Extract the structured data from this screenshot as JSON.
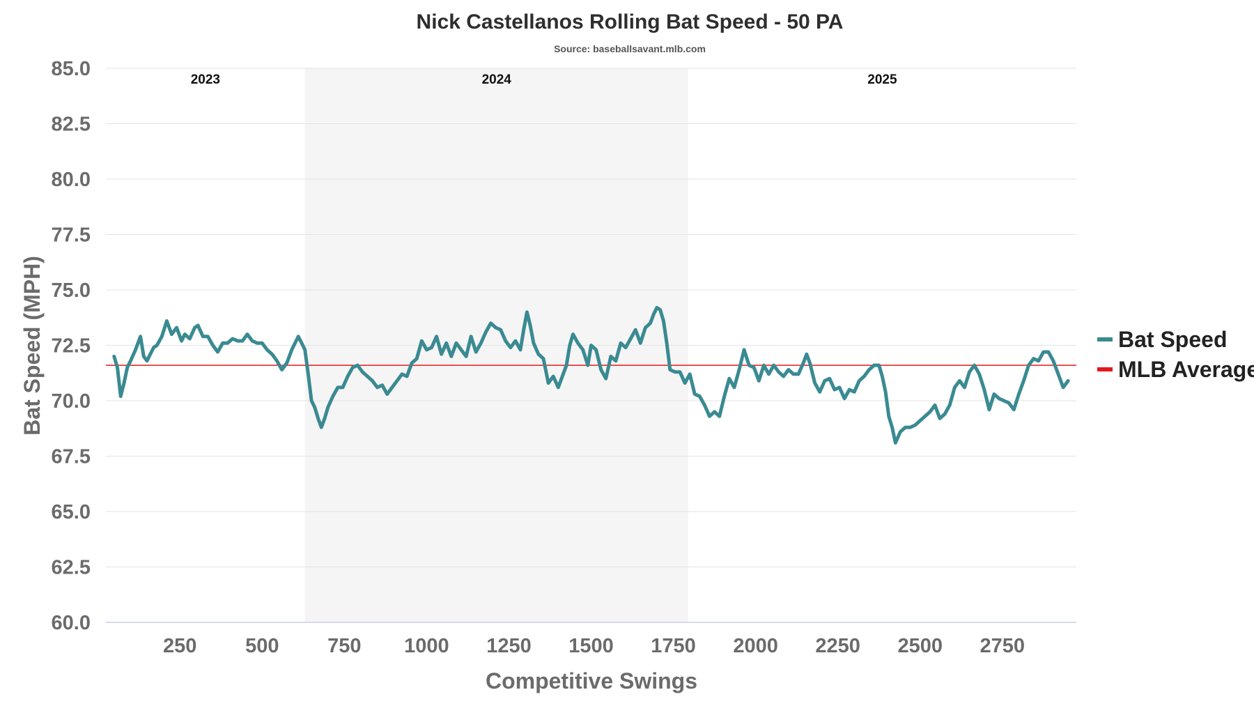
{
  "chart_data": {
    "type": "line",
    "title": "Nick Castellanos Rolling Bat Speed - 50 PA",
    "subtitle": "Source: baseballsavant.mlb.com",
    "xlabel": "Competitive Swings",
    "ylabel": "Bat Speed (MPH)",
    "xlim": [
      25,
      2975
    ],
    "ylim": [
      60.0,
      85.0
    ],
    "x_ticks": [
      250,
      500,
      750,
      1000,
      1250,
      1500,
      1750,
      2000,
      2250,
      2500,
      2750
    ],
    "y_ticks": [
      "60.0",
      "62.5",
      "65.0",
      "67.5",
      "70.0",
      "72.5",
      "75.0",
      "77.5",
      "80.0",
      "82.5",
      "85.0"
    ],
    "grid": "horizontal",
    "legend_position": "right",
    "seasons": [
      {
        "label": "2023",
        "start": 25,
        "end": 630,
        "shaded": false
      },
      {
        "label": "2024",
        "start": 630,
        "end": 1795,
        "shaded": true
      },
      {
        "label": "2025",
        "start": 1795,
        "end": 2975,
        "shaded": false
      }
    ],
    "reference_line": {
      "name": "MLB Average",
      "value": 71.6,
      "color": "#e31a1c"
    },
    "series": [
      {
        "name": "Bat Speed",
        "color": "#3a8a92",
        "x": [
          50,
          60,
          70,
          80,
          90,
          100,
          115,
          130,
          140,
          150,
          160,
          170,
          180,
          195,
          210,
          225,
          240,
          255,
          265,
          280,
          295,
          305,
          320,
          335,
          350,
          365,
          380,
          395,
          410,
          425,
          440,
          455,
          470,
          485,
          500,
          515,
          530,
          545,
          560,
          575,
          590,
          600,
          610,
          620,
          630,
          640,
          650,
          660,
          670,
          680,
          690,
          700,
          715,
          730,
          745,
          760,
          775,
          790,
          805,
          820,
          835,
          850,
          865,
          880,
          895,
          910,
          925,
          940,
          955,
          970,
          985,
          1000,
          1015,
          1030,
          1045,
          1060,
          1075,
          1090,
          1105,
          1120,
          1135,
          1150,
          1165,
          1180,
          1195,
          1210,
          1225,
          1240,
          1255,
          1270,
          1285,
          1295,
          1305,
          1315,
          1325,
          1340,
          1355,
          1370,
          1385,
          1400,
          1415,
          1425,
          1435,
          1445,
          1460,
          1475,
          1490,
          1500,
          1515,
          1530,
          1545,
          1560,
          1575,
          1590,
          1605,
          1620,
          1635,
          1650,
          1665,
          1680,
          1690,
          1700,
          1710,
          1720,
          1730,
          1740,
          1755,
          1770,
          1785,
          1800,
          1815,
          1830,
          1845,
          1860,
          1875,
          1890,
          1905,
          1920,
          1935,
          1950,
          1965,
          1980,
          1995,
          2010,
          2025,
          2040,
          2055,
          2070,
          2085,
          2100,
          2115,
          2130,
          2145,
          2155,
          2165,
          2180,
          2195,
          2210,
          2225,
          2240,
          2255,
          2270,
          2285,
          2300,
          2315,
          2330,
          2345,
          2360,
          2375,
          2385,
          2395,
          2405,
          2415,
          2425,
          2440,
          2455,
          2470,
          2485,
          2500,
          2515,
          2530,
          2545,
          2560,
          2575,
          2590,
          2605,
          2620,
          2635,
          2650,
          2665,
          2680,
          2695,
          2710,
          2725,
          2740,
          2755,
          2770,
          2785,
          2800,
          2815,
          2830,
          2845,
          2860,
          2875,
          2890,
          2905,
          2920,
          2935,
          2950
        ],
        "y": [
          72.0,
          71.5,
          70.2,
          70.8,
          71.5,
          71.8,
          72.3,
          72.9,
          72.0,
          71.8,
          72.1,
          72.4,
          72.5,
          72.9,
          73.6,
          73.0,
          73.3,
          72.7,
          73.0,
          72.8,
          73.3,
          73.4,
          72.9,
          72.9,
          72.5,
          72.2,
          72.6,
          72.6,
          72.8,
          72.7,
          72.7,
          73.0,
          72.7,
          72.6,
          72.6,
          72.3,
          72.1,
          71.8,
          71.4,
          71.7,
          72.3,
          72.6,
          72.9,
          72.6,
          72.3,
          71.2,
          70.0,
          69.7,
          69.2,
          68.8,
          69.2,
          69.7,
          70.2,
          70.6,
          70.6,
          71.1,
          71.5,
          71.6,
          71.3,
          71.1,
          70.9,
          70.6,
          70.7,
          70.3,
          70.6,
          70.9,
          71.2,
          71.1,
          71.7,
          71.9,
          72.7,
          72.3,
          72.4,
          72.9,
          72.1,
          72.6,
          72.0,
          72.6,
          72.3,
          72.0,
          72.9,
          72.2,
          72.6,
          73.1,
          73.5,
          73.3,
          73.2,
          72.7,
          72.4,
          72.7,
          72.3,
          73.2,
          74.0,
          73.4,
          72.6,
          72.1,
          71.9,
          70.8,
          71.1,
          70.6,
          71.2,
          71.6,
          72.5,
          73.0,
          72.6,
          72.3,
          71.6,
          72.5,
          72.3,
          71.4,
          71.0,
          72.0,
          71.8,
          72.6,
          72.4,
          72.8,
          73.2,
          72.6,
          73.3,
          73.5,
          73.9,
          74.2,
          74.1,
          73.6,
          72.6,
          71.4,
          71.3,
          71.3,
          70.8,
          71.2,
          70.3,
          70.2,
          69.8,
          69.3,
          69.5,
          69.3,
          70.2,
          71.0,
          70.6,
          71.4,
          72.3,
          71.6,
          71.5,
          70.9,
          71.6,
          71.2,
          71.6,
          71.3,
          71.1,
          71.4,
          71.2,
          71.2,
          71.7,
          72.1,
          71.7,
          70.8,
          70.4,
          70.9,
          71.0,
          70.5,
          70.6,
          70.1,
          70.5,
          70.4,
          70.9,
          71.1,
          71.4,
          71.6,
          71.6,
          71.1,
          70.4,
          69.3,
          68.8,
          68.1,
          68.6,
          68.8,
          68.8,
          68.9,
          69.1,
          69.3,
          69.5,
          69.8,
          69.2,
          69.4,
          69.8,
          70.6,
          70.9,
          70.6,
          71.3,
          71.6,
          71.2,
          70.5,
          69.6,
          70.3,
          70.1,
          70.0,
          69.9,
          69.6,
          70.3,
          70.9,
          71.6,
          71.9,
          71.8,
          72.2,
          72.2,
          71.8,
          71.2,
          70.6,
          70.9
        ]
      },
      {
        "name": "MLB Average",
        "color": "#e31a1c"
      }
    ]
  }
}
